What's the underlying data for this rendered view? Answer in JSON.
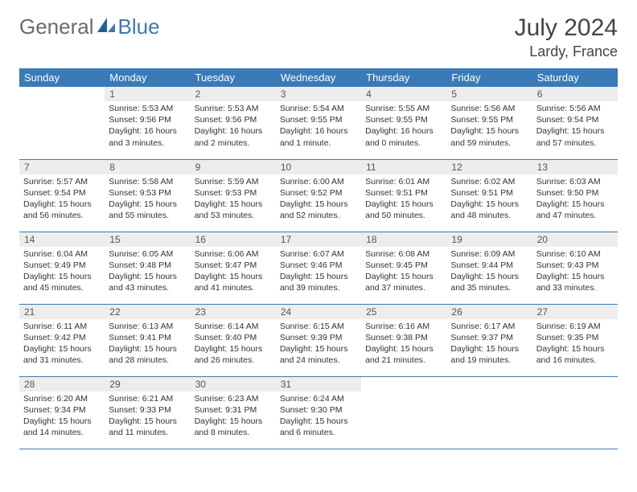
{
  "brand": {
    "general": "General",
    "blue": "Blue"
  },
  "header": {
    "title": "July 2024",
    "location": "Lardy, France"
  },
  "colors": {
    "header_bg": "#3a7ab8",
    "header_text": "#ffffff",
    "daynum_bg": "#ededed",
    "border": "#3a7ab8",
    "body_text": "#333333",
    "logo_gray": "#6b6b6b",
    "logo_blue": "#3a7ab8"
  },
  "weekdays": [
    "Sunday",
    "Monday",
    "Tuesday",
    "Wednesday",
    "Thursday",
    "Friday",
    "Saturday"
  ],
  "weeks": [
    [
      {
        "n": "",
        "sr": "",
        "ss": "",
        "dl": ""
      },
      {
        "n": "1",
        "sr": "Sunrise: 5:53 AM",
        "ss": "Sunset: 9:56 PM",
        "dl": "Daylight: 16 hours and 3 minutes."
      },
      {
        "n": "2",
        "sr": "Sunrise: 5:53 AM",
        "ss": "Sunset: 9:56 PM",
        "dl": "Daylight: 16 hours and 2 minutes."
      },
      {
        "n": "3",
        "sr": "Sunrise: 5:54 AM",
        "ss": "Sunset: 9:55 PM",
        "dl": "Daylight: 16 hours and 1 minute."
      },
      {
        "n": "4",
        "sr": "Sunrise: 5:55 AM",
        "ss": "Sunset: 9:55 PM",
        "dl": "Daylight: 16 hours and 0 minutes."
      },
      {
        "n": "5",
        "sr": "Sunrise: 5:56 AM",
        "ss": "Sunset: 9:55 PM",
        "dl": "Daylight: 15 hours and 59 minutes."
      },
      {
        "n": "6",
        "sr": "Sunrise: 5:56 AM",
        "ss": "Sunset: 9:54 PM",
        "dl": "Daylight: 15 hours and 57 minutes."
      }
    ],
    [
      {
        "n": "7",
        "sr": "Sunrise: 5:57 AM",
        "ss": "Sunset: 9:54 PM",
        "dl": "Daylight: 15 hours and 56 minutes."
      },
      {
        "n": "8",
        "sr": "Sunrise: 5:58 AM",
        "ss": "Sunset: 9:53 PM",
        "dl": "Daylight: 15 hours and 55 minutes."
      },
      {
        "n": "9",
        "sr": "Sunrise: 5:59 AM",
        "ss": "Sunset: 9:53 PM",
        "dl": "Daylight: 15 hours and 53 minutes."
      },
      {
        "n": "10",
        "sr": "Sunrise: 6:00 AM",
        "ss": "Sunset: 9:52 PM",
        "dl": "Daylight: 15 hours and 52 minutes."
      },
      {
        "n": "11",
        "sr": "Sunrise: 6:01 AM",
        "ss": "Sunset: 9:51 PM",
        "dl": "Daylight: 15 hours and 50 minutes."
      },
      {
        "n": "12",
        "sr": "Sunrise: 6:02 AM",
        "ss": "Sunset: 9:51 PM",
        "dl": "Daylight: 15 hours and 48 minutes."
      },
      {
        "n": "13",
        "sr": "Sunrise: 6:03 AM",
        "ss": "Sunset: 9:50 PM",
        "dl": "Daylight: 15 hours and 47 minutes."
      }
    ],
    [
      {
        "n": "14",
        "sr": "Sunrise: 6:04 AM",
        "ss": "Sunset: 9:49 PM",
        "dl": "Daylight: 15 hours and 45 minutes."
      },
      {
        "n": "15",
        "sr": "Sunrise: 6:05 AM",
        "ss": "Sunset: 9:48 PM",
        "dl": "Daylight: 15 hours and 43 minutes."
      },
      {
        "n": "16",
        "sr": "Sunrise: 6:06 AM",
        "ss": "Sunset: 9:47 PM",
        "dl": "Daylight: 15 hours and 41 minutes."
      },
      {
        "n": "17",
        "sr": "Sunrise: 6:07 AM",
        "ss": "Sunset: 9:46 PM",
        "dl": "Daylight: 15 hours and 39 minutes."
      },
      {
        "n": "18",
        "sr": "Sunrise: 6:08 AM",
        "ss": "Sunset: 9:45 PM",
        "dl": "Daylight: 15 hours and 37 minutes."
      },
      {
        "n": "19",
        "sr": "Sunrise: 6:09 AM",
        "ss": "Sunset: 9:44 PM",
        "dl": "Daylight: 15 hours and 35 minutes."
      },
      {
        "n": "20",
        "sr": "Sunrise: 6:10 AM",
        "ss": "Sunset: 9:43 PM",
        "dl": "Daylight: 15 hours and 33 minutes."
      }
    ],
    [
      {
        "n": "21",
        "sr": "Sunrise: 6:11 AM",
        "ss": "Sunset: 9:42 PM",
        "dl": "Daylight: 15 hours and 31 minutes."
      },
      {
        "n": "22",
        "sr": "Sunrise: 6:13 AM",
        "ss": "Sunset: 9:41 PM",
        "dl": "Daylight: 15 hours and 28 minutes."
      },
      {
        "n": "23",
        "sr": "Sunrise: 6:14 AM",
        "ss": "Sunset: 9:40 PM",
        "dl": "Daylight: 15 hours and 26 minutes."
      },
      {
        "n": "24",
        "sr": "Sunrise: 6:15 AM",
        "ss": "Sunset: 9:39 PM",
        "dl": "Daylight: 15 hours and 24 minutes."
      },
      {
        "n": "25",
        "sr": "Sunrise: 6:16 AM",
        "ss": "Sunset: 9:38 PM",
        "dl": "Daylight: 15 hours and 21 minutes."
      },
      {
        "n": "26",
        "sr": "Sunrise: 6:17 AM",
        "ss": "Sunset: 9:37 PM",
        "dl": "Daylight: 15 hours and 19 minutes."
      },
      {
        "n": "27",
        "sr": "Sunrise: 6:19 AM",
        "ss": "Sunset: 9:35 PM",
        "dl": "Daylight: 15 hours and 16 minutes."
      }
    ],
    [
      {
        "n": "28",
        "sr": "Sunrise: 6:20 AM",
        "ss": "Sunset: 9:34 PM",
        "dl": "Daylight: 15 hours and 14 minutes."
      },
      {
        "n": "29",
        "sr": "Sunrise: 6:21 AM",
        "ss": "Sunset: 9:33 PM",
        "dl": "Daylight: 15 hours and 11 minutes."
      },
      {
        "n": "30",
        "sr": "Sunrise: 6:23 AM",
        "ss": "Sunset: 9:31 PM",
        "dl": "Daylight: 15 hours and 8 minutes."
      },
      {
        "n": "31",
        "sr": "Sunrise: 6:24 AM",
        "ss": "Sunset: 9:30 PM",
        "dl": "Daylight: 15 hours and 6 minutes."
      },
      {
        "n": "",
        "sr": "",
        "ss": "",
        "dl": ""
      },
      {
        "n": "",
        "sr": "",
        "ss": "",
        "dl": ""
      },
      {
        "n": "",
        "sr": "",
        "ss": "",
        "dl": ""
      }
    ]
  ]
}
